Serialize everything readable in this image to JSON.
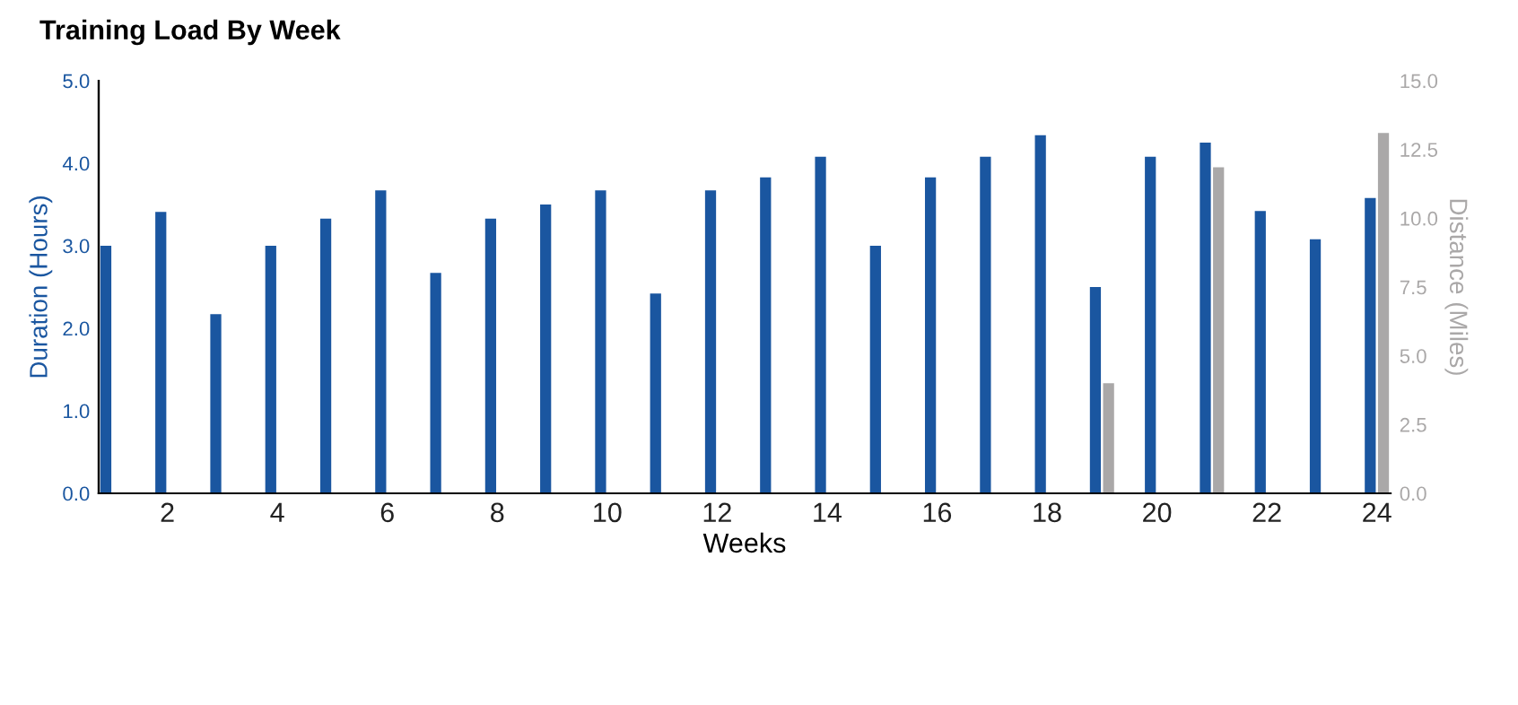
{
  "chart_data": {
    "type": "bar",
    "title": "Training Load By Week",
    "xlabel": "Weeks",
    "ylabel": "Duration (Hours)",
    "y2label": "Distance (Miles)",
    "x": [
      1,
      2,
      3,
      4,
      5,
      6,
      7,
      8,
      9,
      10,
      11,
      12,
      13,
      14,
      15,
      16,
      17,
      18,
      19,
      20,
      21,
      22,
      23,
      24
    ],
    "series": [
      {
        "color": "#1a56a0",
        "values": [
          3.0,
          3.41,
          2.17,
          3.0,
          3.33,
          3.67,
          2.67,
          3.33,
          3.5,
          3.67,
          2.42,
          3.67,
          3.83,
          4.08,
          3.0,
          3.83,
          4.08,
          4.34,
          2.5,
          4.08,
          4.25,
          3.42,
          3.08,
          3.58
        ]
      },
      {
        "color": "#aaa8a8",
        "axis": "y2",
        "values": [
          0,
          0,
          0,
          0,
          0,
          0,
          0,
          0,
          0,
          0,
          0,
          0,
          0,
          0,
          0,
          0,
          0,
          0,
          4.0,
          0,
          11.85,
          0,
          0,
          13.1
        ]
      }
    ],
    "xlim": [
      0.75,
      24.25
    ],
    "xticks": [
      2,
      4,
      6,
      8,
      10,
      12,
      14,
      16,
      18,
      20,
      22,
      24
    ],
    "ylim": [
      0,
      5
    ],
    "yticks": [
      {
        "value": 0,
        "label": "0.0"
      },
      {
        "value": 1,
        "label": "1.0"
      },
      {
        "value": 2,
        "label": "2.0"
      },
      {
        "value": 3,
        "label": "3.0"
      },
      {
        "value": 4,
        "label": "4.0"
      },
      {
        "value": 5,
        "label": "5.0"
      }
    ],
    "y2lim": [
      0,
      15
    ],
    "y2ticks": [
      {
        "value": 0,
        "label": "0.0"
      },
      {
        "value": 2.5,
        "label": "2.5"
      },
      {
        "value": 5,
        "label": "5.0"
      },
      {
        "value": 7.5,
        "label": "7.5"
      },
      {
        "value": 10,
        "label": "10.0"
      },
      {
        "value": 12.5,
        "label": "12.5"
      },
      {
        "value": 15,
        "label": "15.0"
      }
    ],
    "grid": false,
    "legend": false
  }
}
